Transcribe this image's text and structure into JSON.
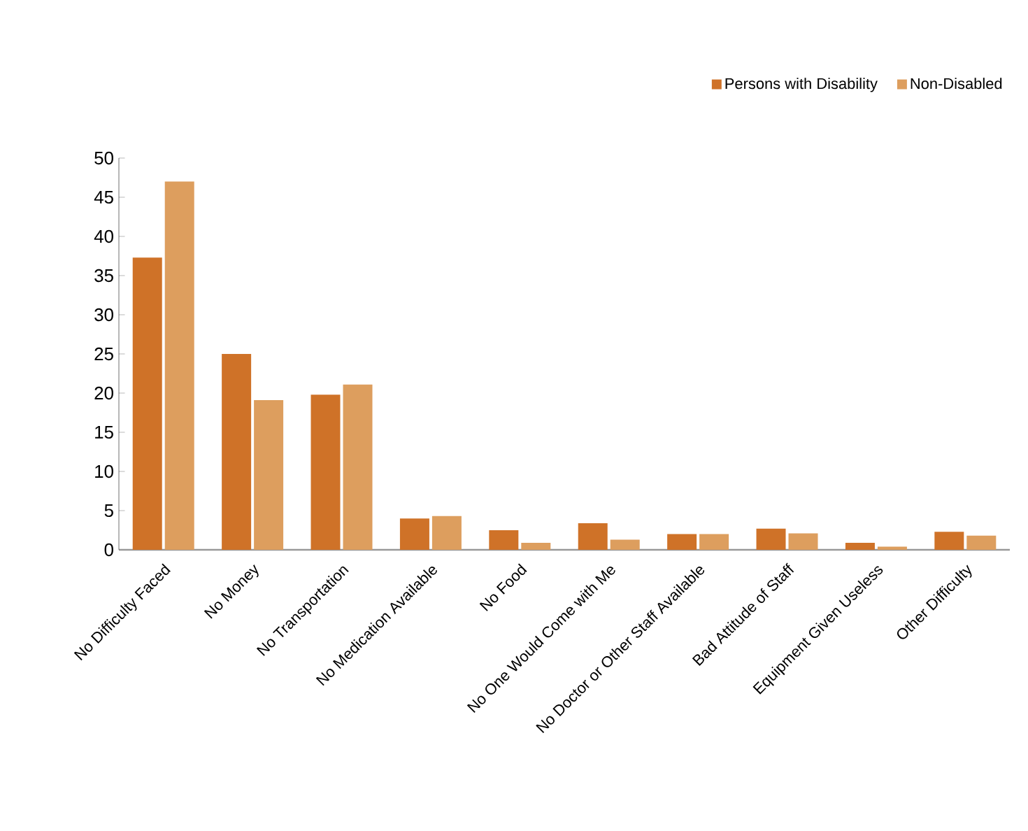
{
  "chart_data": {
    "type": "bar",
    "categories": [
      "No Difficulty Faced",
      "No Money",
      "No Transportation",
      "No Medication Available",
      "No Food",
      "No One Would Come with Me",
      "No Doctor or Other Staff Available",
      "Bad Attitude of Staff",
      "Equipment Given Useless",
      "Other Difficulty"
    ],
    "series": [
      {
        "name": "Persons with Disability",
        "color": "#cf7228",
        "values": [
          37.3,
          25,
          19.8,
          4.0,
          2.5,
          3.4,
          2.0,
          2.7,
          0.9,
          2.3
        ]
      },
      {
        "name": "Non-Disabled",
        "color": "#dd9e5e",
        "values": [
          47,
          19.1,
          21.1,
          4.3,
          0.9,
          1.3,
          2.0,
          2.1,
          0.4,
          1.8
        ]
      }
    ],
    "ylim": [
      0,
      50
    ],
    "yticks": [
      0,
      5,
      10,
      15,
      20,
      25,
      30,
      35,
      40,
      45,
      50
    ],
    "grid": false,
    "legend": "top right"
  }
}
